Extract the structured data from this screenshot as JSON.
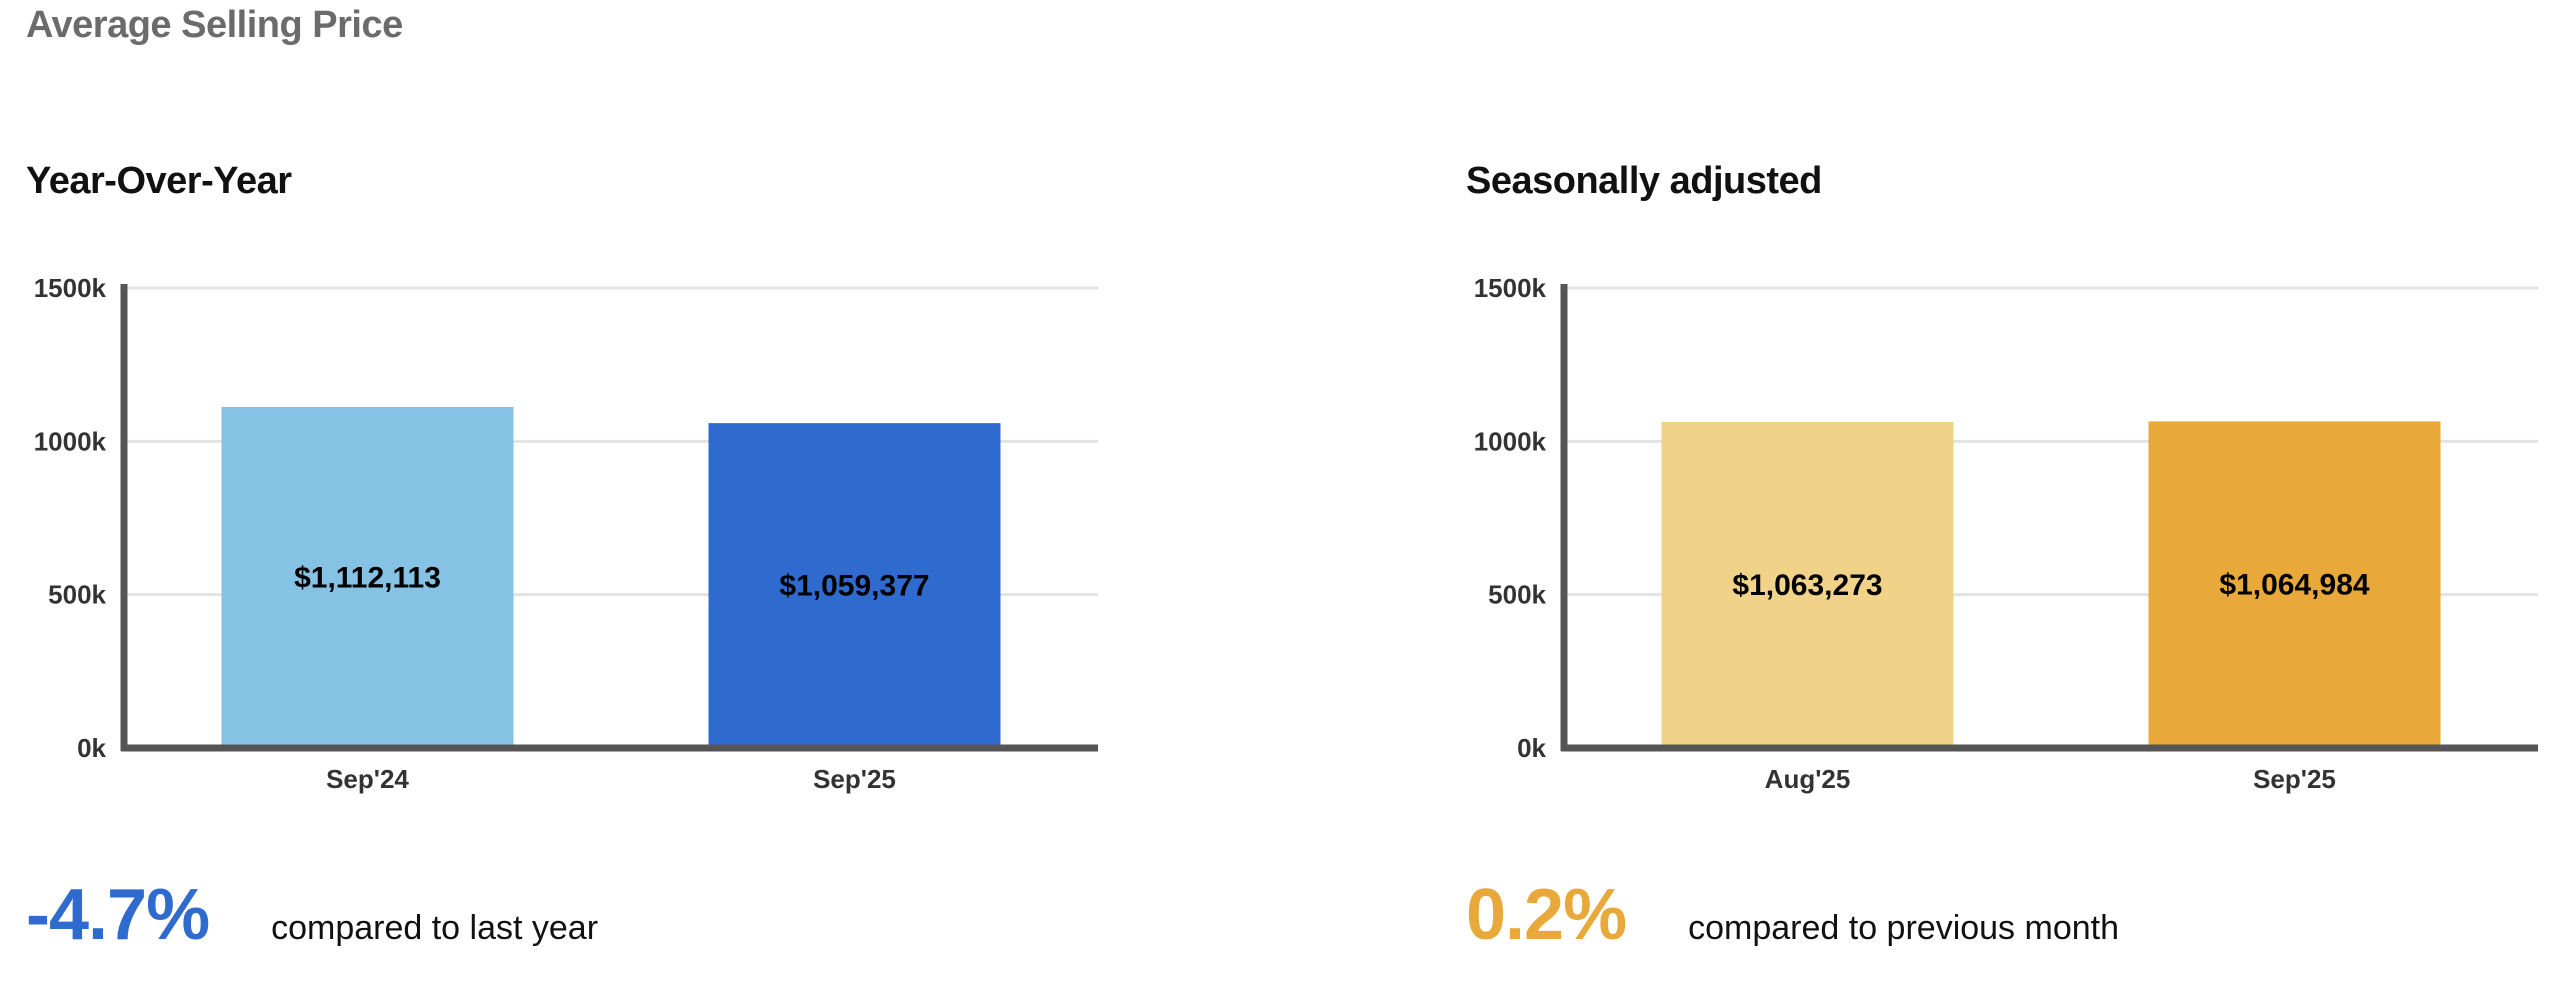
{
  "page_title": "Average Selling Price",
  "panels": [
    {
      "title": "Year-Over-Year",
      "change": "-4.7%",
      "change_color": "#2f6bce",
      "comparison": "compared to last year"
    },
    {
      "title": "Seasonally adjusted",
      "change": "0.2%",
      "change_color": "#e8a93a",
      "comparison": "compared to previous month"
    }
  ],
  "chart_data": [
    {
      "type": "bar",
      "title": "Year-Over-Year",
      "categories": [
        "Sep'24",
        "Sep'25"
      ],
      "values": [
        1112113,
        1059377
      ],
      "data_labels": [
        "$1,112,113",
        "$1,059,377"
      ],
      "colors": [
        "#85c2e4",
        "#2f6bce"
      ],
      "ylim": [
        0,
        1500000
      ],
      "yticks": [
        0,
        500000,
        1000000,
        1500000
      ],
      "ytick_labels": [
        "0k",
        "500k",
        "1000k",
        "1500k"
      ],
      "grid": true
    },
    {
      "type": "bar",
      "title": "Seasonally adjusted",
      "categories": [
        "Aug'25",
        "Sep'25"
      ],
      "values": [
        1063273,
        1064984
      ],
      "data_labels": [
        "$1,063,273",
        "$1,064,984"
      ],
      "colors": [
        "#f0d388",
        "#e8a93a"
      ],
      "ylim": [
        0,
        1500000
      ],
      "yticks": [
        0,
        500000,
        1000000,
        1500000
      ],
      "ytick_labels": [
        "0k",
        "500k",
        "1000k",
        "1500k"
      ],
      "grid": true
    }
  ]
}
